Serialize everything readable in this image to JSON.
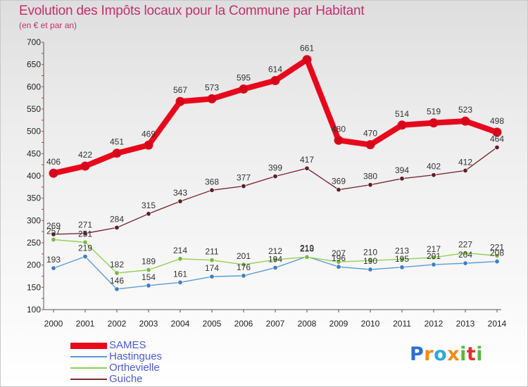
{
  "title": "Evolution des Impôts locaux pour la Commune par Habitant",
  "subtitle": "(en € et par an)",
  "logo": {
    "text": "Proxiti",
    "letters": [
      {
        "ch": "P",
        "color": "#2d6fcf"
      },
      {
        "ch": "r",
        "color": "#f08a1c"
      },
      {
        "ch": "o",
        "color": "#2da8d8"
      },
      {
        "ch": "x",
        "color": "#f08a1c"
      },
      {
        "ch": "i",
        "color": "#5ab93c"
      },
      {
        "ch": "t",
        "color": "#d8342f"
      },
      {
        "ch": "i",
        "color": "#5ab93c"
      }
    ]
  },
  "chart_data": {
    "type": "line",
    "title": "Evolution des Impôts locaux pour la Commune par Habitant",
    "subtitle": "(en € et par an)",
    "xlabel": "",
    "ylabel": "",
    "x": [
      "2000",
      "2001",
      "2002",
      "2003",
      "2004",
      "2005",
      "2006",
      "2007",
      "2008",
      "2009",
      "2010",
      "2011",
      "2012",
      "2013",
      "2014"
    ],
    "ylim": [
      100,
      700
    ],
    "yticks": [
      100,
      150,
      200,
      250,
      300,
      350,
      400,
      450,
      500,
      550,
      600,
      650,
      700
    ],
    "grid": false,
    "legend_position": "bottom-left",
    "series": [
      {
        "name": "SAMES",
        "color": "#e8081c",
        "marker": "#d5081a",
        "weight": "thick",
        "values": [
          406,
          422,
          451,
          469,
          567,
          573,
          595,
          614,
          661,
          480,
          470,
          514,
          519,
          523,
          498
        ]
      },
      {
        "name": "Hastingues",
        "color": "#5b9bd5",
        "marker": "#3e7fc1",
        "weight": "thin",
        "values": [
          193,
          219,
          146,
          154,
          161,
          174,
          176,
          194,
          219,
          196,
          190,
          195,
          201,
          204,
          208
        ]
      },
      {
        "name": "Orthevielle",
        "color": "#92d050",
        "marker": "#7ab840",
        "weight": "thin",
        "values": [
          257,
          251,
          182,
          189,
          214,
          211,
          201,
          212,
          218,
          207,
          210,
          213,
          217,
          227,
          221
        ]
      },
      {
        "name": "Guiche",
        "color": "#7a2c34",
        "marker": "#5e1f27",
        "weight": "thin",
        "values": [
          269,
          271,
          284,
          315,
          343,
          368,
          377,
          399,
          417,
          369,
          380,
          394,
          402,
          412,
          464
        ]
      }
    ]
  }
}
